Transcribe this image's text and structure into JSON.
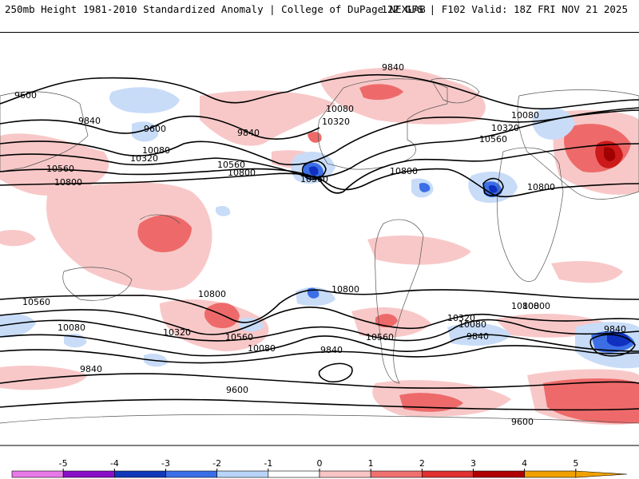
{
  "header": {
    "left_title": "250mb Height 1981-2010 Standardized Anomaly | College of DuPage NEXLAB",
    "right_title": "12Z GFS | F102 Valid: 18Z FRI NOV 21 2025"
  },
  "map": {
    "contour_labels": [
      {
        "text": "9600",
        "name": "contour-label-9600-npac"
      },
      {
        "text": "9840",
        "name": "contour-label-9840-npac"
      },
      {
        "text": "9600",
        "name": "contour-label-9600-alaska"
      },
      {
        "text": "9840",
        "name": "contour-label-9840-bc"
      },
      {
        "text": "10080",
        "name": "contour-label-10080-npac"
      },
      {
        "text": "10320",
        "name": "contour-label-10320-npac"
      },
      {
        "text": "10560",
        "name": "contour-label-10560-wpac"
      },
      {
        "text": "10800",
        "name": "contour-label-10800-wpac"
      },
      {
        "text": "10560",
        "name": "contour-label-10560-cpac"
      },
      {
        "text": "10800",
        "name": "contour-label-10800-cpac"
      },
      {
        "text": "10080",
        "name": "contour-label-10080-canada"
      },
      {
        "text": "10320",
        "name": "contour-label-10320-canada"
      },
      {
        "text": "10560",
        "name": "contour-label-10560-california"
      },
      {
        "text": "10800",
        "name": "contour-label-10800-gulf"
      },
      {
        "text": "9840",
        "name": "contour-label-9840-greenland"
      },
      {
        "text": "10080",
        "name": "contour-label-10080-europe"
      },
      {
        "text": "10320",
        "name": "contour-label-10320-europe"
      },
      {
        "text": "10560",
        "name": "contour-label-10560-atlantic"
      },
      {
        "text": "10800",
        "name": "contour-label-10800-africa"
      },
      {
        "text": "10800",
        "name": "contour-label-10800-sindian"
      },
      {
        "text": "10560",
        "name": "contour-label-10560-sindian"
      },
      {
        "text": "10080",
        "name": "contour-label-10080-sindian"
      },
      {
        "text": "9840",
        "name": "contour-label-9840-sindian"
      },
      {
        "text": "10800",
        "name": "contour-label-10800-spac"
      },
      {
        "text": "10320",
        "name": "contour-label-10320-spac"
      },
      {
        "text": "10560",
        "name": "contour-label-10560-spac"
      },
      {
        "text": "10800",
        "name": "contour-label-10800-sepac"
      },
      {
        "text": "10080",
        "name": "contour-label-10080-spac"
      },
      {
        "text": "9840",
        "name": "contour-label-9840-spac"
      },
      {
        "text": "10560",
        "name": "contour-label-10560-satl"
      },
      {
        "text": "10320",
        "name": "contour-label-10320-satl"
      },
      {
        "text": "10080",
        "name": "contour-label-10080-satl"
      },
      {
        "text": "9840",
        "name": "contour-label-9840-satl"
      },
      {
        "text": "10800",
        "name": "contour-label-10800-safrica"
      },
      {
        "text": "9840",
        "name": "contour-label-9840-sind-low"
      },
      {
        "text": "9600",
        "name": "contour-label-9600-antarctic"
      },
      {
        "text": "9600",
        "name": "contour-label-9600-antarctic-east"
      }
    ]
  },
  "colorbar": {
    "ticks": [
      "-5",
      "-4",
      "-3",
      "-2",
      "-1",
      "0",
      "1",
      "2",
      "3",
      "4",
      "5"
    ],
    "colors": [
      "#e879e8",
      "#8a10c8",
      "#1038b8",
      "#3a6ee8",
      "#b8d4f8",
      "#ffffff",
      "#f8c4c4",
      "#f07070",
      "#e03030",
      "#b00000",
      "#f0a000"
    ]
  },
  "colors": {
    "deep_blue": "#1030c0",
    "blue": "#3c6ee6",
    "light_blue": "#c8dcf8",
    "light_red": "#f8c8c8",
    "red": "#ee6a6a",
    "deep_red": "#cc1a1a",
    "dark_red": "#a00000"
  }
}
